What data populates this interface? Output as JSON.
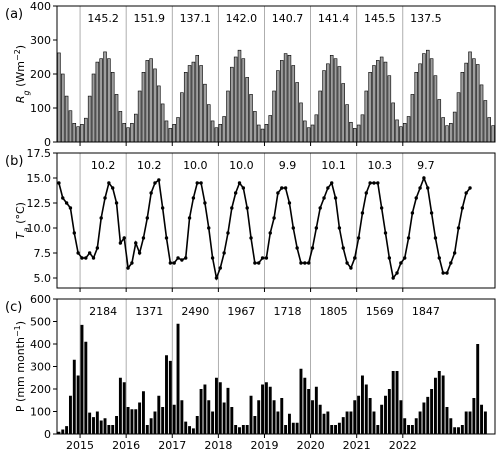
{
  "chart_data": [
    {
      "type": "bar",
      "panel_label": "(a)",
      "ylabel": "R_g (Wm^-2)",
      "ylim": [
        0,
        400
      ],
      "yticks": [
        0,
        100,
        200,
        300,
        400
      ],
      "bar_color": "#9e9e9e",
      "x_start": "2014-07",
      "annotations": [
        "145.2",
        "151.9",
        "137.1",
        "142.0",
        "140.7",
        "141.4",
        "145.5",
        "137.5"
      ],
      "values": [
        262,
        200,
        135,
        92,
        55,
        45,
        52,
        70,
        135,
        200,
        235,
        245,
        265,
        245,
        205,
        140,
        90,
        55,
        42,
        55,
        82,
        150,
        205,
        240,
        245,
        215,
        165,
        112,
        62,
        40,
        52,
        72,
        145,
        205,
        225,
        235,
        255,
        225,
        170,
        110,
        62,
        42,
        52,
        75,
        150,
        220,
        250,
        270,
        245,
        190,
        140,
        90,
        50,
        38,
        52,
        78,
        150,
        210,
        240,
        260,
        255,
        225,
        175,
        115,
        62,
        42,
        50,
        80,
        150,
        210,
        230,
        255,
        245,
        222,
        172,
        110,
        58,
        40,
        50,
        80,
        150,
        205,
        225,
        240,
        250,
        235,
        195,
        115,
        65,
        45,
        55,
        75,
        140,
        205,
        230,
        260,
        270,
        245,
        195,
        125,
        72,
        48,
        55,
        88,
        145,
        205,
        232,
        265,
        245,
        228,
        168,
        122,
        72,
        48
      ]
    },
    {
      "type": "line",
      "panel_label": "(b)",
      "ylabel": "T_a (°C)",
      "ylim": [
        4.0,
        17.5
      ],
      "yticks": [
        "5.0",
        "7.5",
        "10.0",
        "12.5",
        "15.0",
        "17.5"
      ],
      "line_color": "#000000",
      "x_start": "2014-07",
      "annotations": [
        "10.2",
        "10.2",
        "10.0",
        "10.0",
        "9.9",
        "10.1",
        "10.3",
        "9.7"
      ],
      "values": [
        14.5,
        13.0,
        12.5,
        12.0,
        9.5,
        7.5,
        7.0,
        7.0,
        7.5,
        7.0,
        8.0,
        11.0,
        13.0,
        14.5,
        14.0,
        12.5,
        8.5,
        9.0,
        6.0,
        6.5,
        8.5,
        7.5,
        9.0,
        11.0,
        13.5,
        14.5,
        14.8,
        12.0,
        9.0,
        6.5,
        6.5,
        7.0,
        6.8,
        7.0,
        11.0,
        13.0,
        14.5,
        14.5,
        12.5,
        10.0,
        7.0,
        5.0,
        6.0,
        7.5,
        9.5,
        12.0,
        13.5,
        14.5,
        14.0,
        12.0,
        9.0,
        6.5,
        6.5,
        7.0,
        7.0,
        9.5,
        11.0,
        13.5,
        14.0,
        14.0,
        12.5,
        10.0,
        8.0,
        6.5,
        6.5,
        6.5,
        8.0,
        10.0,
        12.0,
        13.0,
        14.0,
        14.5,
        13.0,
        10.0,
        8.0,
        6.5,
        6.0,
        7.0,
        9.0,
        11.5,
        13.5,
        14.5,
        14.5,
        14.5,
        12.0,
        9.5,
        7.0,
        5.0,
        5.5,
        6.5,
        7.0,
        9.0,
        11.5,
        13.0,
        14.0,
        15.0,
        14.0,
        11.5,
        9.0,
        7.0,
        5.5,
        5.5,
        6.5,
        7.5,
        10.0,
        12.0,
        13.5,
        14.0
      ]
    },
    {
      "type": "bar",
      "panel_label": "(c)",
      "ylabel": "P (mm month^-1)",
      "ylim": [
        0,
        600
      ],
      "yticks": [
        0,
        100,
        200,
        300,
        400,
        500,
        600
      ],
      "bar_color": "#000000",
      "x_start": "2014-07",
      "annotations": [
        "2184",
        "1371",
        "2490",
        "1967",
        "1718",
        "1805",
        "1569",
        "1847"
      ],
      "xticks": [
        "2015",
        "2016",
        "2017",
        "2018",
        "2019",
        "2020",
        "2021",
        "2022"
      ],
      "values": [
        10,
        20,
        35,
        170,
        330,
        260,
        485,
        410,
        95,
        75,
        100,
        60,
        70,
        40,
        40,
        80,
        250,
        230,
        120,
        110,
        110,
        140,
        190,
        40,
        70,
        100,
        170,
        120,
        350,
        325,
        130,
        490,
        150,
        55,
        35,
        25,
        80,
        200,
        220,
        150,
        100,
        250,
        230,
        140,
        205,
        120,
        40,
        30,
        40,
        40,
        170,
        80,
        150,
        220,
        230,
        210,
        150,
        100,
        160,
        40,
        90,
        50,
        50,
        290,
        250,
        200,
        150,
        210,
        130,
        90,
        100,
        40,
        40,
        50,
        75,
        100,
        100,
        150,
        170,
        260,
        220,
        160,
        100,
        40,
        130,
        170,
        200,
        280,
        280,
        150,
        70,
        40,
        40,
        70,
        100,
        140,
        165,
        200,
        250,
        280,
        260,
        120,
        70,
        30,
        30,
        40,
        100,
        100,
        160,
        400,
        130,
        100
      ]
    }
  ]
}
